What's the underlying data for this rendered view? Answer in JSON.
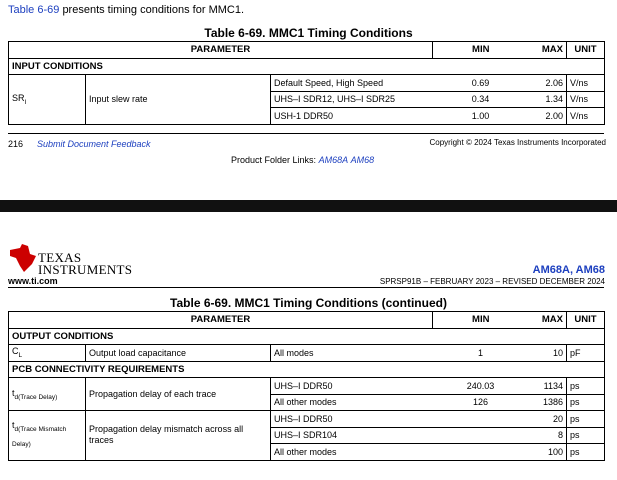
{
  "page1": {
    "intro": {
      "link": "Table 6-69",
      "text": "presents timing conditions for MMC1."
    },
    "table": {
      "title": "Table 6-69. MMC1 Timing Conditions",
      "header": [
        "PARAMETER",
        "MIN",
        "MAX",
        "UNIT"
      ],
      "section": "INPUT CONDITIONS",
      "param": {
        "symbol": "SR",
        "sub": "I",
        "description": "Input slew rate"
      },
      "rows": [
        {
          "condition": "Default Speed, High Speed",
          "min": "0.69",
          "max": "2.06",
          "unit": "V/ns"
        },
        {
          "condition": "UHS–I SDR12, UHS–I SDR25",
          "min": "0.34",
          "max": "1.34",
          "unit": "V/ns"
        },
        {
          "condition": "USH-1 DDR50",
          "min": "1.00",
          "max": "2.00",
          "unit": "V/ns"
        }
      ]
    },
    "footer": {
      "page": "216",
      "feedback": "Submit Document Feedback",
      "copyright": "Copyright © 2024 Texas Instruments Incorporated",
      "links_label": "Product Folder Links:",
      "links": [
        "AM68A",
        "AM68"
      ]
    }
  },
  "page2": {
    "header": {
      "logo_top": "TEXAS",
      "logo_bottom": "INSTRUMENTS",
      "site": "www.ti.com",
      "parts": "AM68A, AM68",
      "doc": "SPRSP91B – FEBRUARY 2023 – REVISED DECEMBER 2024"
    },
    "table": {
      "title": "Table 6-69. MMC1 Timing Conditions (continued)",
      "header": [
        "PARAMETER",
        "MIN",
        "MAX",
        "UNIT"
      ],
      "sections": [
        {
          "name": "OUTPUT CONDITIONS",
          "params": [
            {
              "symbol": "C",
              "sub": "L",
              "description": "Output load capacitance",
              "rows": [
                {
                  "condition": "All modes",
                  "min": "1",
                  "max": "10",
                  "unit": "pF"
                }
              ]
            }
          ]
        },
        {
          "name": "PCB CONNECTIVITY REQUIREMENTS",
          "params": [
            {
              "symbol": "t",
              "sub": "d(Trace Delay)",
              "description": "Propagation delay of each trace",
              "rows": [
                {
                  "condition": "UHS–I DDR50",
                  "min": "240.03",
                  "max": "1134",
                  "unit": "ps"
                },
                {
                  "condition": "All other modes",
                  "min": "126",
                  "max": "1386",
                  "unit": "ps"
                }
              ]
            },
            {
              "symbol": "t",
              "sub": "d(Trace Mismatch Delay)",
              "description": "Propagation delay mismatch across all traces",
              "rows": [
                {
                  "condition": "UHS–I DDR50",
                  "min": "",
                  "max": "20",
                  "unit": "ps"
                },
                {
                  "condition": "UHS–I SDR104",
                  "min": "",
                  "max": "8",
                  "unit": "ps"
                },
                {
                  "condition": "All other modes",
                  "min": "",
                  "max": "100",
                  "unit": "ps"
                }
              ]
            }
          ]
        }
      ]
    }
  }
}
